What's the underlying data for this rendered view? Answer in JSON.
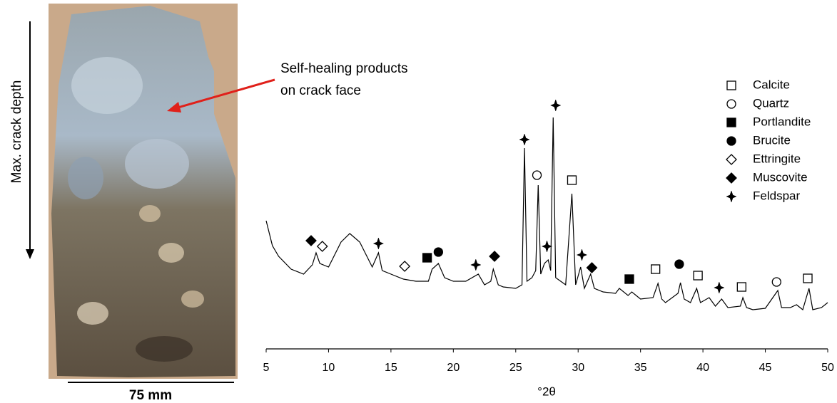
{
  "photo": {
    "depth_label": "Max. crack depth",
    "annotation": [
      "Self-healing products",
      "on crack face"
    ],
    "scale_label": "75 mm"
  },
  "chart_data": {
    "type": "line",
    "xlabel": "°2θ",
    "xlim": [
      5,
      50
    ],
    "xticks": [
      5,
      10,
      15,
      20,
      25,
      30,
      35,
      40,
      45,
      50
    ],
    "ylim": [
      0,
      400
    ],
    "color": "#000000",
    "pattern": {
      "x": [
        5,
        5.5,
        6,
        7,
        8,
        8.7,
        9,
        9.3,
        10,
        11,
        11.7,
        12.5,
        13.5,
        14,
        14.3,
        15,
        16,
        17,
        18,
        18.3,
        18.8,
        19.3,
        20,
        21,
        22,
        22.5,
        23,
        23.2,
        23.6,
        24,
        25,
        25.5,
        25.7,
        25.9,
        26.3,
        26.6,
        26.8,
        27,
        27.3,
        27.6,
        27.8,
        28,
        28.2,
        28.6,
        29,
        29.5,
        29.8,
        30.2,
        30.5,
        31,
        31.3,
        32,
        33,
        33.3,
        34,
        34.3,
        35,
        36,
        36.4,
        36.7,
        37,
        38,
        38.2,
        38.5,
        39,
        39.5,
        39.8,
        40.5,
        41,
        41.5,
        42,
        43,
        43.2,
        43.5,
        44,
        45,
        46,
        46.3,
        47,
        47.5,
        48,
        48.5,
        48.8,
        49.5,
        50
      ],
      "values": [
        180,
        145,
        130,
        112,
        105,
        118,
        135,
        120,
        115,
        150,
        162,
        150,
        115,
        135,
        110,
        105,
        98,
        95,
        95,
        112,
        120,
        100,
        95,
        95,
        105,
        90,
        95,
        112,
        90,
        87,
        85,
        90,
        282,
        95,
        100,
        110,
        230,
        105,
        120,
        125,
        110,
        325,
        100,
        95,
        90,
        218,
        90,
        115,
        85,
        105,
        85,
        80,
        78,
        85,
        75,
        80,
        70,
        72,
        92,
        70,
        65,
        78,
        93,
        70,
        65,
        85,
        65,
        72,
        60,
        70,
        58,
        60,
        72,
        58,
        55,
        57,
        82,
        58,
        58,
        62,
        55,
        85,
        55,
        58,
        65
      ]
    },
    "series": [
      {
        "name": "Calcite",
        "marker": "square-open",
        "x": [
          29.5,
          36.2,
          39.6,
          43.1,
          48.4
        ],
        "values": [
          237,
          112,
          103,
          87,
          99
        ]
      },
      {
        "name": "Quartz",
        "marker": "circle-open",
        "x": [
          26.7,
          45.9
        ],
        "values": [
          244,
          94
        ]
      },
      {
        "name": "Portlandite",
        "marker": "square",
        "x": [
          17.9,
          34.1
        ],
        "values": [
          128,
          98
        ]
      },
      {
        "name": "Brucite",
        "marker": "circle",
        "x": [
          18.8,
          38.1
        ],
        "values": [
          136,
          119
        ]
      },
      {
        "name": "Ettringite",
        "marker": "diamond-open",
        "x": [
          9.5,
          16.1
        ],
        "values": [
          144,
          116
        ]
      },
      {
        "name": "Muscovite",
        "marker": "diamond",
        "x": [
          8.6,
          23.3,
          31.1
        ],
        "values": [
          152,
          130,
          114
        ]
      },
      {
        "name": "Feldspar",
        "marker": "star",
        "x": [
          14,
          21.8,
          25.7,
          27.5,
          28.2,
          30.3,
          41.3
        ],
        "values": [
          148,
          118,
          294,
          144,
          342,
          132,
          86
        ]
      }
    ]
  }
}
